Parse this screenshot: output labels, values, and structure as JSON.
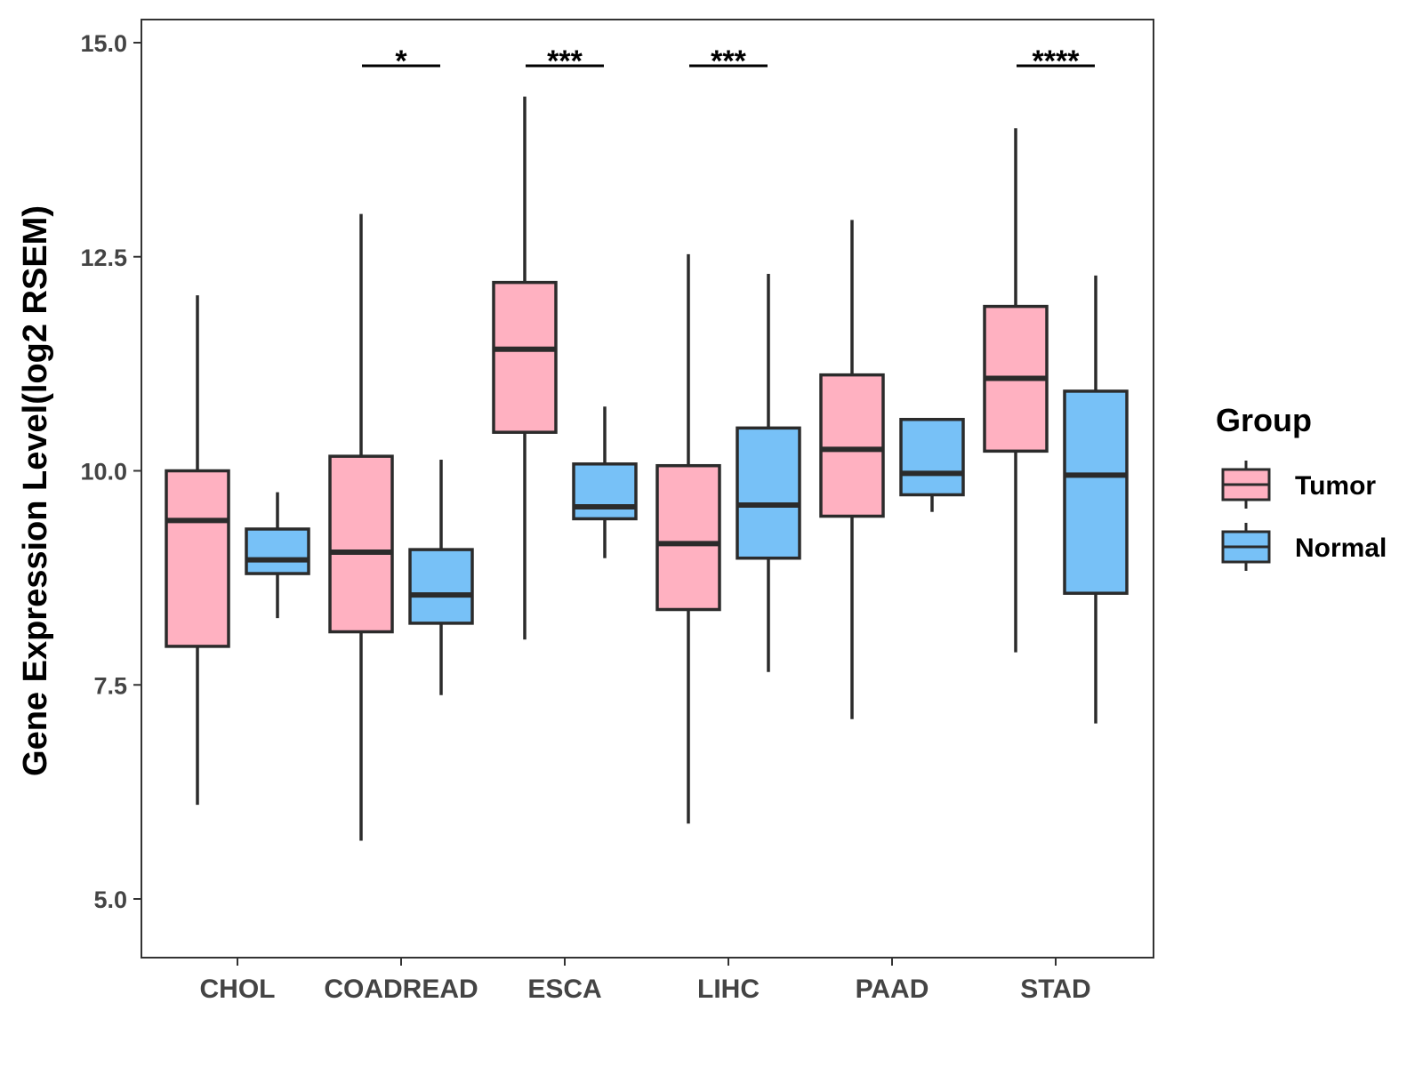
{
  "chart_data": {
    "type": "boxplot",
    "title": "",
    "xlabel": "",
    "ylabel": "Gene Expression Level(log2 RSEM)",
    "ylim": [
      4.3,
      15.25
    ],
    "yticks": [
      5.0,
      7.5,
      10.0,
      12.5,
      15.0
    ],
    "ytick_labels": [
      "5.0",
      "7.5",
      "10.0",
      "12.5",
      "15.0"
    ],
    "categories": [
      "CHOL",
      "COADREAD",
      "ESCA",
      "LIHC",
      "PAAD",
      "STAD"
    ],
    "legend": {
      "title": "Group",
      "position": "right",
      "entries": [
        {
          "name": "Tumor",
          "color": "#FFB1C1"
        },
        {
          "name": "Normal",
          "color": "#77C1F7"
        }
      ]
    },
    "series": [
      {
        "name": "Tumor",
        "color": "#FFB1C1",
        "boxes": [
          {
            "category": "CHOL",
            "whisker_low": 6.1,
            "q1": 7.95,
            "median": 9.42,
            "q3": 10.0,
            "whisker_high": 12.05
          },
          {
            "category": "COADREAD",
            "whisker_low": 5.68,
            "q1": 8.12,
            "median": 9.05,
            "q3": 10.17,
            "whisker_high": 13.0
          },
          {
            "category": "ESCA",
            "whisker_low": 8.03,
            "q1": 10.45,
            "median": 11.42,
            "q3": 12.2,
            "whisker_high": 14.37
          },
          {
            "category": "LIHC",
            "whisker_low": 5.88,
            "q1": 8.38,
            "median": 9.15,
            "q3": 10.06,
            "whisker_high": 12.53
          },
          {
            "category": "PAAD",
            "whisker_low": 7.1,
            "q1": 9.47,
            "median": 10.25,
            "q3": 11.12,
            "whisker_high": 12.93
          },
          {
            "category": "STAD",
            "whisker_low": 7.88,
            "q1": 10.23,
            "median": 11.08,
            "q3": 11.92,
            "whisker_high": 14.0
          }
        ]
      },
      {
        "name": "Normal",
        "color": "#77C1F7",
        "boxes": [
          {
            "category": "CHOL",
            "whisker_low": 8.28,
            "q1": 8.8,
            "median": 8.96,
            "q3": 9.32,
            "whisker_high": 9.75
          },
          {
            "category": "COADREAD",
            "whisker_low": 7.38,
            "q1": 8.22,
            "median": 8.55,
            "q3": 9.08,
            "whisker_high": 10.13
          },
          {
            "category": "ESCA",
            "whisker_low": 8.98,
            "q1": 9.44,
            "median": 9.58,
            "q3": 10.08,
            "whisker_high": 10.75
          },
          {
            "category": "LIHC",
            "whisker_low": 7.65,
            "q1": 8.98,
            "median": 9.6,
            "q3": 10.5,
            "whisker_high": 12.3
          },
          {
            "category": "PAAD",
            "whisker_low": 9.52,
            "q1": 9.72,
            "median": 9.97,
            "q3": 10.6,
            "whisker_high": 10.6
          },
          {
            "category": "STAD",
            "whisker_low": 7.05,
            "q1": 8.57,
            "median": 9.95,
            "q3": 10.93,
            "whisker_high": 12.28
          }
        ]
      }
    ],
    "significance": [
      {
        "category": "COADREAD",
        "label": "*",
        "y": 14.73
      },
      {
        "category": "ESCA",
        "label": "***",
        "y": 14.73
      },
      {
        "category": "LIHC",
        "label": "***",
        "y": 14.73
      },
      {
        "category": "STAD",
        "label": "****",
        "y": 14.73
      }
    ]
  },
  "colors": {
    "box_stroke": "#2b2b2b",
    "panel_border": "#333333",
    "tick_text": "#444444"
  }
}
